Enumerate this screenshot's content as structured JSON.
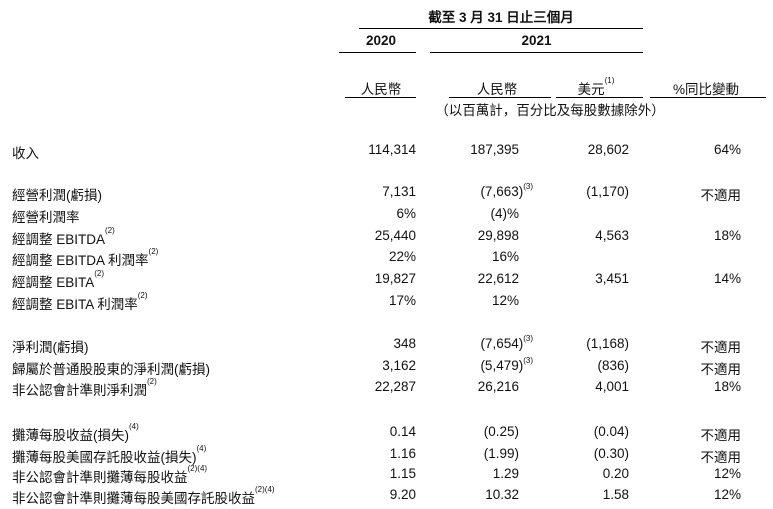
{
  "header": {
    "period_title": "截至 3 月 31 日止三個月",
    "year_2020": "2020",
    "year_2021": "2021",
    "col_rmb_2020": "人民幣",
    "col_rmb_2021": "人民幣",
    "col_usd": "美元",
    "col_usd_note": "(1)",
    "col_change": "%同比變動",
    "units_note": "（以百萬計，百分比及每股數據除外）"
  },
  "rows": [
    {
      "label": "收入",
      "label_note": "",
      "v2020": "114,314",
      "v2020_note": "",
      "v2021": "187,395",
      "v2021_note": "",
      "usd": "28,602",
      "chg": "64%"
    },
    {
      "label": "經營利潤(虧損)",
      "label_note": "",
      "v2020": "7,131",
      "v2020_note": "",
      "v2021": "(7,663)",
      "v2021_note": "(3)",
      "usd": "(1,170)",
      "chg": "不適用"
    },
    {
      "label": "經營利潤率",
      "label_note": "",
      "v2020": "6%",
      "v2020_note": "",
      "v2021": "(4)%",
      "v2021_note": "",
      "usd": "",
      "chg": ""
    },
    {
      "label": "經調整 EBITDA",
      "label_note": "(2)",
      "v2020": "25,440",
      "v2020_note": "",
      "v2021": "29,898",
      "v2021_note": "",
      "usd": "4,563",
      "chg": "18%"
    },
    {
      "label": "經調整 EBITDA 利潤率",
      "label_note": "(2)",
      "v2020": "22%",
      "v2020_note": "",
      "v2021": "16%",
      "v2021_note": "",
      "usd": "",
      "chg": ""
    },
    {
      "label": "經調整 EBITA",
      "label_note": "(2)",
      "v2020": "19,827",
      "v2020_note": "",
      "v2021": "22,612",
      "v2021_note": "",
      "usd": "3,451",
      "chg": "14%"
    },
    {
      "label": "經調整 EBITA 利潤率",
      "label_note": "(2)",
      "v2020": "17%",
      "v2020_note": "",
      "v2021": "12%",
      "v2021_note": "",
      "usd": "",
      "chg": ""
    },
    {
      "label": "淨利潤(虧損)",
      "label_note": "",
      "v2020": "348",
      "v2020_note": "",
      "v2021": "(7,654)",
      "v2021_note": "(3)",
      "usd": "(1,168)",
      "chg": "不適用"
    },
    {
      "label": "歸屬於普通股股東的淨利潤(虧損)",
      "label_note": "",
      "v2020": "3,162",
      "v2020_note": "",
      "v2021": "(5,479)",
      "v2021_note": "(3)",
      "usd": "(836)",
      "chg": "不適用"
    },
    {
      "label": "非公認會計準則淨利潤",
      "label_note": "(2)",
      "v2020": "22,287",
      "v2020_note": "",
      "v2021": "26,216",
      "v2021_note": "",
      "usd": "4,001",
      "chg": "18%"
    },
    {
      "label": "攤薄每股收益(損失)",
      "label_note": "(4)",
      "v2020": "0.14",
      "v2020_note": "",
      "v2021": "(0.25)",
      "v2021_note": "",
      "usd": "(0.04)",
      "chg": "不適用"
    },
    {
      "label": "攤薄每股美國存託股收益(損失)",
      "label_note": "(4)",
      "v2020": "1.16",
      "v2020_note": "",
      "v2021": "(1.99)",
      "v2021_note": "",
      "usd": "(0.30)",
      "chg": "不適用"
    },
    {
      "label": "非公認會計準則攤薄每股收益",
      "label_note": "(2)(4)",
      "v2020": "1.15",
      "v2020_note": "",
      "v2021": "1.29",
      "v2021_note": "",
      "usd": "0.20",
      "chg": "12%"
    },
    {
      "label": "非公認會計準則攤薄每股美國存託股收益",
      "label_note": "(2)(4)",
      "v2020": "9.20",
      "v2020_note": "",
      "v2021": "10.32",
      "v2021_note": "",
      "usd": "1.58",
      "chg": "12%"
    }
  ]
}
